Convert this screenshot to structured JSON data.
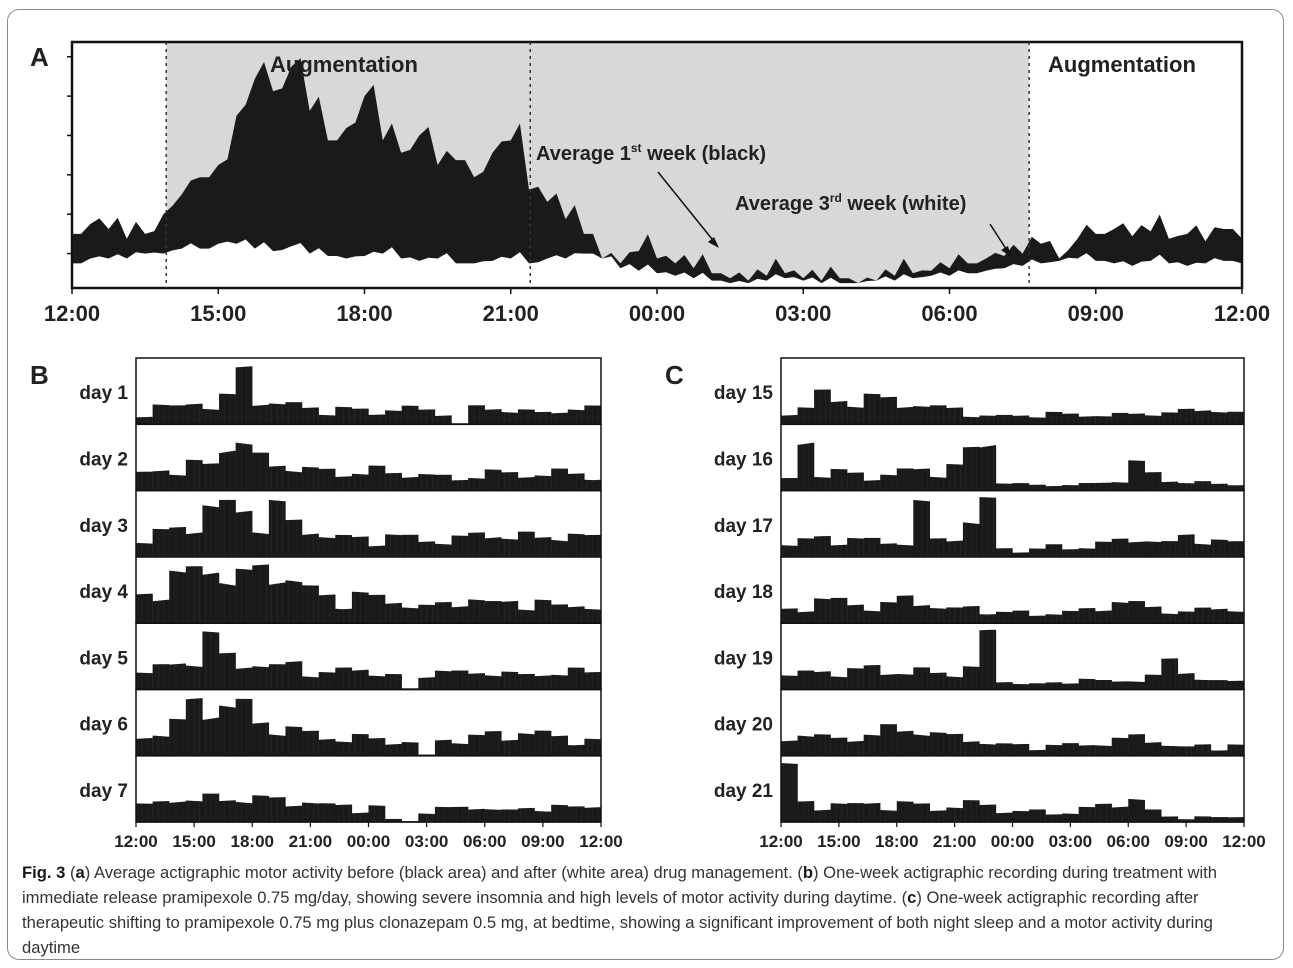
{
  "chart_data": [
    {
      "panel": "A",
      "type": "area",
      "x_ticks": [
        "12:00",
        "15:00",
        "18:00",
        "21:00",
        "00:00",
        "03:00",
        "06:00",
        "09:00",
        "12:00"
      ],
      "shaded_region": {
        "from": "13:56",
        "to": "07:38"
      },
      "annotations": [
        "Augmentation",
        "Average 1st week (black)",
        "Average 3rd week (white)",
        "Augmentation"
      ],
      "series": [
        {
          "color": "#1a1a1a",
          "values": [
            0.22,
            0.26,
            0.24,
            0.2,
            0.22,
            0.3,
            0.38,
            0.45,
            0.5,
            0.7,
            0.85,
            0.8,
            0.9,
            0.72,
            0.6,
            0.65,
            0.78,
            0.6,
            0.55,
            0.62,
            0.5,
            0.52,
            0.45,
            0.55,
            0.6,
            0.4,
            0.35,
            0.28,
            0.22,
            0.12,
            0.1,
            0.15,
            0.12,
            0.1,
            0.08,
            0.06,
            0.04,
            0.03,
            0.05,
            0.06,
            0.04,
            0.03,
            0.04,
            0.02,
            0.03,
            0.05,
            0.06,
            0.07,
            0.08,
            0.1,
            0.12,
            0.13,
            0.14,
            0.18,
            0.12,
            0.2,
            0.22,
            0.24,
            0.21,
            0.23,
            0.2,
            0.22,
            0.19,
            0.24,
            0.2
          ]
        },
        {
          "color": "#ffffff",
          "values": [
            0.1,
            0.12,
            0.12,
            0.12,
            0.14,
            0.14,
            0.16,
            0.16,
            0.18,
            0.18,
            0.16,
            0.15,
            0.17,
            0.14,
            0.13,
            0.12,
            0.13,
            0.14,
            0.12,
            0.11,
            0.12,
            0.1,
            0.1,
            0.11,
            0.12,
            0.1,
            0.12,
            0.12,
            0.14,
            0.12,
            0.08,
            0.07,
            0.06,
            0.05,
            0.04,
            0.03,
            0.02,
            0.02,
            0.03,
            0.04,
            0.03,
            0.02,
            0.02,
            0.02,
            0.03,
            0.03,
            0.04,
            0.05,
            0.05,
            0.06,
            0.07,
            0.08,
            0.09,
            0.1,
            0.11,
            0.12,
            0.11,
            0.1,
            0.09,
            0.11,
            0.1,
            0.09,
            0.1,
            0.11,
            0.1
          ]
        }
      ]
    },
    {
      "panel": "B",
      "type": "bar",
      "x_ticks": [
        "12:00",
        "15:00",
        "18:00",
        "21:00",
        "00:00",
        "03:00",
        "06:00",
        "09:00",
        "12:00"
      ],
      "rows": [
        {
          "label": "day 1",
          "values": [
            0.2,
            0.35,
            0.3,
            0.4,
            0.35,
            0.5,
            0.95,
            0.45,
            0.4,
            0.35,
            0.3,
            0.25,
            0.3,
            0.25,
            0.2,
            0.3,
            0.3,
            0.25,
            0.22,
            0.02,
            0.3,
            0.28,
            0.3,
            0.25,
            0.2,
            0.25,
            0.3,
            0.3
          ]
        },
        {
          "label": "day 2",
          "values": [
            0.3,
            0.4,
            0.35,
            0.5,
            0.45,
            0.95,
            0.9,
            0.6,
            0.45,
            0.5,
            0.4,
            0.35,
            0.3,
            0.35,
            0.4,
            0.3,
            0.35,
            0.3,
            0.25,
            0.2,
            0.3,
            0.35,
            0.3,
            0.3,
            0.3,
            0.35,
            0.3,
            0.3
          ]
        },
        {
          "label": "day 3",
          "values": [
            0.3,
            0.45,
            0.5,
            0.6,
            0.95,
            0.9,
            0.85,
            0.6,
            0.95,
            0.6,
            0.5,
            0.4,
            0.35,
            0.35,
            0.3,
            0.4,
            0.35,
            0.3,
            0.3,
            0.35,
            0.4,
            0.45,
            0.35,
            0.4,
            0.35,
            0.45,
            0.4,
            0.35
          ]
        },
        {
          "label": "day 4",
          "values": [
            0.5,
            0.6,
            0.95,
            0.9,
            0.95,
            0.95,
            0.9,
            0.95,
            0.9,
            0.85,
            0.6,
            0.5,
            0.4,
            0.55,
            0.45,
            0.4,
            0.35,
            0.3,
            0.35,
            0.4,
            0.45,
            0.35,
            0.4,
            0.35,
            0.4,
            0.3,
            0.35,
            0.3
          ]
        },
        {
          "label": "day 5",
          "values": [
            0.3,
            0.4,
            0.5,
            0.55,
            0.95,
            0.6,
            0.5,
            0.45,
            0.4,
            0.5,
            0.35,
            0.3,
            0.35,
            0.4,
            0.3,
            0.25,
            0.02,
            0.3,
            0.35,
            0.3,
            0.3,
            0.35,
            0.3,
            0.25,
            0.3,
            0.3,
            0.35,
            0.3
          ]
        },
        {
          "label": "day 6",
          "values": [
            0.35,
            0.45,
            0.6,
            0.95,
            0.9,
            0.95,
            0.9,
            0.6,
            0.55,
            0.5,
            0.4,
            0.35,
            0.3,
            0.35,
            0.3,
            0.3,
            0.25,
            0.02,
            0.3,
            0.3,
            0.35,
            0.4,
            0.35,
            0.45,
            0.4,
            0.35,
            0.3,
            0.3
          ]
        },
        {
          "label": "day 7",
          "values": [
            0.3,
            0.35,
            0.5,
            0.4,
            0.45,
            0.4,
            0.5,
            0.45,
            0.4,
            0.35,
            0.4,
            0.3,
            0.3,
            0.25,
            0.3,
            0.05,
            0.02,
            0.2,
            0.25,
            0.25,
            0.3,
            0.25,
            0.2,
            0.25,
            0.3,
            0.3,
            0.25,
            0.3
          ]
        }
      ]
    },
    {
      "panel": "C",
      "type": "bar",
      "x_ticks": [
        "12:00",
        "15:00",
        "18:00",
        "21:00",
        "00:00",
        "03:00",
        "06:00",
        "09:00",
        "12:00"
      ],
      "rows": [
        {
          "label": "day 15",
          "values": [
            0.25,
            0.3,
            0.55,
            0.45,
            0.4,
            0.5,
            0.45,
            0.4,
            0.35,
            0.3,
            0.3,
            0.2,
            0.15,
            0.15,
            0.18,
            0.15,
            0.2,
            0.18,
            0.2,
            0.15,
            0.18,
            0.2,
            0.22,
            0.2,
            0.25,
            0.3,
            0.25,
            0.2
          ]
        },
        {
          "label": "day 16",
          "values": [
            0.2,
            0.95,
            0.3,
            0.35,
            0.3,
            0.25,
            0.3,
            0.35,
            0.4,
            0.35,
            0.45,
            0.7,
            0.95,
            0.15,
            0.12,
            0.1,
            0.12,
            0.1,
            0.12,
            0.15,
            0.2,
            0.5,
            0.3,
            0.2,
            0.15,
            0.15,
            0.12,
            0.15
          ]
        },
        {
          "label": "day 17",
          "values": [
            0.25,
            0.3,
            0.35,
            0.3,
            0.35,
            0.3,
            0.25,
            0.3,
            0.95,
            0.3,
            0.35,
            0.7,
            0.95,
            0.15,
            0.12,
            0.15,
            0.2,
            0.15,
            0.2,
            0.25,
            0.3,
            0.35,
            0.3,
            0.25,
            0.4,
            0.35,
            0.3,
            0.25
          ]
        },
        {
          "label": "day 18",
          "values": [
            0.25,
            0.3,
            0.45,
            0.4,
            0.35,
            0.3,
            0.35,
            0.45,
            0.4,
            0.3,
            0.25,
            0.3,
            0.25,
            0.2,
            0.2,
            0.15,
            0.2,
            0.2,
            0.25,
            0.3,
            0.4,
            0.35,
            0.3,
            0.25,
            0.2,
            0.25,
            0.3,
            0.25
          ]
        },
        {
          "label": "day 19",
          "values": [
            0.25,
            0.3,
            0.35,
            0.3,
            0.35,
            0.4,
            0.35,
            0.3,
            0.35,
            0.3,
            0.35,
            0.4,
            0.95,
            0.15,
            0.12,
            0.1,
            0.12,
            0.15,
            0.2,
            0.15,
            0.15,
            0.2,
            0.25,
            0.5,
            0.35,
            0.2,
            0.15,
            0.15
          ]
        },
        {
          "label": "day 20",
          "values": [
            0.3,
            0.45,
            0.35,
            0.3,
            0.35,
            0.4,
            0.5,
            0.45,
            0.55,
            0.4,
            0.35,
            0.3,
            0.25,
            0.2,
            0.2,
            0.15,
            0.2,
            0.2,
            0.2,
            0.25,
            0.3,
            0.35,
            0.3,
            0.2,
            0.15,
            0.2,
            0.15,
            0.2
          ]
        },
        {
          "label": "day 21",
          "values": [
            0.95,
            0.35,
            0.3,
            0.35,
            0.3,
            0.35,
            0.3,
            0.35,
            0.3,
            0.25,
            0.3,
            0.35,
            0.3,
            0.25,
            0.2,
            0.2,
            0.15,
            0.2,
            0.25,
            0.3,
            0.35,
            0.45,
            0.2,
            0.1,
            0.08,
            0.1,
            0.08,
            0.1
          ]
        }
      ]
    }
  ],
  "panel_letters": {
    "a": "A",
    "b": "B",
    "c": "C"
  },
  "annotations": {
    "aug_left": "Augmentation",
    "aug_right": "Augmentation",
    "week1_pre": "Average 1",
    "week1_sup": "st",
    "week1_post": " week (black)",
    "week3_pre": "Average 3",
    "week3_sup": "rd",
    "week3_post": " week (white)"
  },
  "caption": {
    "fig_label": "Fig. 3",
    "s1": " (",
    "a": "a",
    "s2": ") Average actigraphic motor activity before (black area) and after (white area) drug management. (",
    "b": "b",
    "s3": ") One-week actigraphic recording during treatment with immediate release pramipexole 0.75 mg/day, showing severe insomnia and high levels of motor activity during daytime. (",
    "c": "c",
    "s4": ") One-week actigraphic recording after therapeutic shifting to pramipexole 0.75 mg plus clonazepam 0.5 mg, at bedtime, showing a significant improvement of both night sleep and a motor activity during daytime"
  }
}
